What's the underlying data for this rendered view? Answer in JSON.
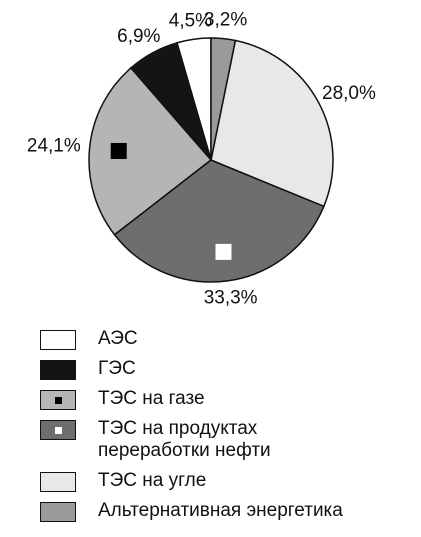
{
  "chart_data": {
    "type": "pie",
    "categories": [
      "АЭС",
      "ГЭС",
      "ТЭС на газе",
      "ТЭС на продуктах\nпереработки нефти",
      "ТЭС на угле",
      "Альтернативная энергетика"
    ],
    "values": [
      4.5,
      6.9,
      24.1,
      33.3,
      28.0,
      3.2
    ],
    "value_labels": [
      "4,5%",
      "6,9%",
      "24,1%",
      "33,3%",
      "28,0%",
      "3,2%"
    ],
    "colors": [
      "#ffffff",
      "#141414",
      "#b5b5b5",
      "#6e6e6e",
      "#e8e8e8",
      "#9a9a9a"
    ],
    "marker_colors": [
      null,
      null,
      "#000000",
      "#ffffff",
      null,
      null
    ]
  }
}
